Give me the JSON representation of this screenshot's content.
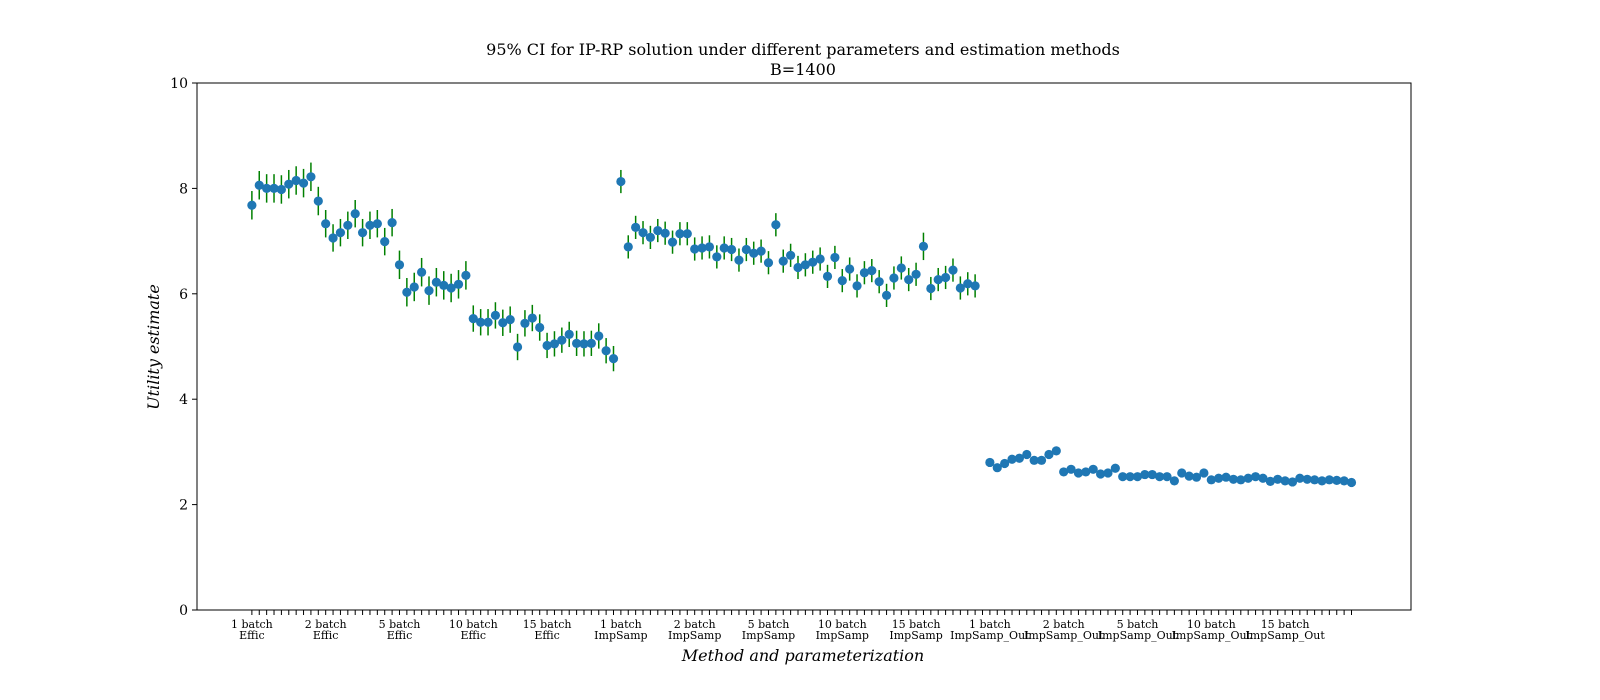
{
  "chart_data": {
    "type": "scatter",
    "title_line1": "95% CI for IP-RP solution under different parameters and estimation methods",
    "title_line2": "B=1400",
    "xlabel": "Method and parameterization",
    "ylabel": "Utility estimate",
    "ylim": [
      0,
      10
    ],
    "yticks": [
      "0",
      "2",
      "4",
      "6",
      "8",
      "10"
    ],
    "grid": false,
    "legend": "none",
    "colors": {
      "marker": "#1f77b4",
      "errorbar": "#008000"
    },
    "groups": [
      {
        "line1": "1 batch",
        "line2": "Effic",
        "tick_index": 1
      },
      {
        "line1": "2 batch",
        "line2": "Effic",
        "tick_index": 11
      },
      {
        "line1": "5 batch",
        "line2": "Effic",
        "tick_index": 21
      },
      {
        "line1": "10 batch",
        "line2": "Effic",
        "tick_index": 31
      },
      {
        "line1": "15 batch",
        "line2": "Effic",
        "tick_index": 41
      },
      {
        "line1": "1 batch",
        "line2": "ImpSamp",
        "tick_index": 51
      },
      {
        "line1": "2 batch",
        "line2": "ImpSamp",
        "tick_index": 61
      },
      {
        "line1": "5 batch",
        "line2": "ImpSamp",
        "tick_index": 71
      },
      {
        "line1": "10 batch",
        "line2": "ImpSamp",
        "tick_index": 81
      },
      {
        "line1": "15 batch",
        "line2": "ImpSamp",
        "tick_index": 91
      },
      {
        "line1": "1 batch",
        "line2": "ImpSamp_Out",
        "tick_index": 101
      },
      {
        "line1": "2 batch",
        "line2": "ImpSamp_Out",
        "tick_index": 111
      },
      {
        "line1": "5 batch",
        "line2": "ImpSamp_Out",
        "tick_index": 121
      },
      {
        "line1": "10 batch",
        "line2": "ImpSamp_Out",
        "tick_index": 131
      },
      {
        "line1": "15 batch",
        "line2": "ImpSamp_Out",
        "tick_index": 141
      }
    ],
    "series": [
      {
        "x_start": 1,
        "values": [
          7.68,
          8.06,
          8.0,
          8.0,
          7.98,
          8.08,
          8.15,
          8.1,
          8.22,
          7.76,
          7.33,
          7.06,
          7.16,
          7.3,
          7.52,
          7.16,
          7.3,
          7.33,
          6.99,
          7.35,
          6.55,
          6.03,
          6.13,
          6.41,
          6.06,
          6.22,
          6.16,
          6.11,
          6.18,
          6.35,
          5.53,
          5.46,
          5.46,
          5.59,
          5.45,
          5.51,
          4.99,
          5.44,
          5.54,
          5.36,
          5.02,
          5.05,
          5.12,
          5.23,
          5.06,
          5.05,
          5.06,
          5.2,
          4.92,
          4.77
        ],
        "err": [
          0.27,
          0.27,
          0.27,
          0.27,
          0.27,
          0.27,
          0.27,
          0.27,
          0.27,
          0.27,
          0.26,
          0.26,
          0.26,
          0.26,
          0.26,
          0.26,
          0.26,
          0.26,
          0.26,
          0.26,
          0.27,
          0.27,
          0.27,
          0.27,
          0.27,
          0.27,
          0.27,
          0.27,
          0.27,
          0.27,
          0.25,
          0.25,
          0.25,
          0.25,
          0.25,
          0.25,
          0.25,
          0.25,
          0.25,
          0.25,
          0.24,
          0.24,
          0.24,
          0.24,
          0.24,
          0.24,
          0.24,
          0.24,
          0.24,
          0.24
        ]
      },
      {
        "x_start": 51,
        "values": [
          8.13,
          6.89,
          7.26,
          7.16,
          7.07,
          7.2,
          7.15,
          6.98,
          7.14,
          7.14,
          6.85,
          6.87,
          6.89,
          6.7,
          6.87,
          6.84,
          6.64,
          6.84,
          6.77,
          6.81,
          6.59,
          7.31,
          6.62,
          6.73,
          6.5,
          6.55,
          6.6,
          6.66,
          6.33,
          6.69,
          6.25,
          6.47,
          6.15,
          6.4,
          6.44,
          6.23,
          5.97,
          6.3,
          6.49,
          6.27,
          6.37,
          6.9,
          6.1,
          6.27,
          6.31,
          6.45,
          6.11,
          6.19,
          6.15
        ],
        "err": [
          0.22,
          0.22,
          0.22,
          0.22,
          0.22,
          0.22,
          0.22,
          0.22,
          0.22,
          0.22,
          0.22,
          0.22,
          0.22,
          0.22,
          0.22,
          0.22,
          0.22,
          0.22,
          0.22,
          0.22,
          0.22,
          0.22,
          0.22,
          0.22,
          0.22,
          0.22,
          0.22,
          0.22,
          0.22,
          0.22,
          0.22,
          0.22,
          0.22,
          0.22,
          0.22,
          0.22,
          0.22,
          0.22,
          0.22,
          0.22,
          0.22,
          0.26,
          0.22,
          0.22,
          0.22,
          0.22,
          0.22,
          0.22,
          0.22
        ]
      },
      {
        "x_start": 101,
        "values": [
          2.8,
          2.7,
          2.78,
          2.86,
          2.88,
          2.95,
          2.84,
          2.84,
          2.95,
          3.02,
          2.62,
          2.67,
          2.6,
          2.62,
          2.67,
          2.58,
          2.6,
          2.69,
          2.53,
          2.53,
          2.53,
          2.57,
          2.57,
          2.53,
          2.53,
          2.45,
          2.6,
          2.54,
          2.52,
          2.6,
          2.47,
          2.5,
          2.52,
          2.48,
          2.47,
          2.5,
          2.53,
          2.5,
          2.44,
          2.48,
          2.45,
          2.43,
          2.5,
          2.48,
          2.47,
          2.45,
          2.47,
          2.46,
          2.45,
          2.42
        ]
      }
    ]
  }
}
